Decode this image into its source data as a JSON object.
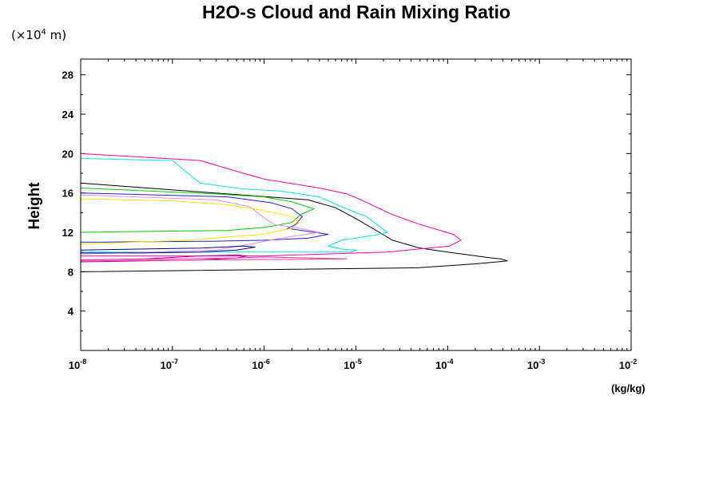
{
  "chart_data": {
    "type": "line",
    "title": "H2O-s Cloud and Rain Mixing Ratio",
    "y_unit_label": {
      "prefix": "(×10",
      "exponent": "4",
      "suffix": " m)"
    },
    "ylabel": "Height",
    "xlabel": "(kg/kg)",
    "xscale": "log",
    "xlim": [
      1e-08,
      0.01
    ],
    "ylim": [
      0,
      29.6
    ],
    "x_ticks": [
      {
        "value": 1e-08,
        "base": "10",
        "exp": "-8"
      },
      {
        "value": 1e-07,
        "base": "10",
        "exp": "-7"
      },
      {
        "value": 1e-06,
        "base": "10",
        "exp": "-6"
      },
      {
        "value": 1e-05,
        "base": "10",
        "exp": "-5"
      },
      {
        "value": 0.0001,
        "base": "10",
        "exp": "-4"
      },
      {
        "value": 0.001,
        "base": "10",
        "exp": "-3"
      },
      {
        "value": 0.01,
        "base": "10",
        "exp": "-2"
      }
    ],
    "y_ticks": [
      {
        "value": 4,
        "label": "4"
      },
      {
        "value": 8,
        "label": "8"
      },
      {
        "value": 12,
        "label": "12"
      },
      {
        "value": 16,
        "label": "16"
      },
      {
        "value": 20,
        "label": "20"
      },
      {
        "value": 24,
        "label": "24"
      },
      {
        "value": 28,
        "label": "28"
      }
    ],
    "grid": false,
    "legend": "none",
    "series": [
      {
        "color": "#000000",
        "x": [
          1e-08,
          4.8e-05,
          0.0002,
          0.00035,
          0.00045,
          0.00038,
          0.0003,
          0.0001,
          5e-05,
          2.5e-05,
          1.8e-05,
          1e-05,
          6e-06,
          3e-06,
          1e-08
        ],
        "y": [
          8.0,
          8.4,
          8.8,
          9.0,
          9.1,
          9.3,
          9.4,
          10.0,
          10.4,
          11.2,
          12.0,
          13.4,
          14.5,
          15.3,
          17.0
        ]
      },
      {
        "color": "#ff00aa",
        "x": [
          1e-08,
          1e-06,
          2.2e-05,
          0.000105,
          0.00014,
          0.000115,
          5e-05,
          2.5e-05,
          1.2e-05,
          8e-06,
          4e-06,
          1e-06,
          5e-07,
          2e-07,
          1e-08
        ],
        "y": [
          9.6,
          9.6,
          10.0,
          10.6,
          11.2,
          11.8,
          12.8,
          13.8,
          15.2,
          15.9,
          16.5,
          17.4,
          18.2,
          19.3,
          20.0
        ]
      },
      {
        "color": "#00e5e5",
        "x": [
          1e-08,
          1e-07,
          2e-07,
          6e-07,
          1.5e-06,
          4e-06,
          7e-06,
          1.3e-05,
          2.2e-05,
          1.6e-05,
          7e-06,
          5e-06,
          7e-06,
          1e-05,
          9e-06,
          1e-08
        ],
        "y": [
          19.5,
          19.3,
          17.0,
          16.4,
          16.2,
          15.6,
          14.6,
          13.6,
          12.0,
          11.7,
          11.2,
          10.6,
          10.3,
          10.2,
          10.0,
          10.0
        ]
      },
      {
        "color": "#00cc00",
        "x": [
          1e-08,
          3e-07,
          1e-06,
          2e-06,
          3.5e-06,
          2.5e-06,
          2e-06,
          1e-06,
          4e-07,
          1e-08
        ],
        "y": [
          16.5,
          15.9,
          15.6,
          15.1,
          14.4,
          13.8,
          13.0,
          12.5,
          12.2,
          12.0
        ]
      },
      {
        "color": "#2222cc",
        "x": [
          1e-08,
          4e-07,
          1.2e-06,
          2e-06,
          2.6e-06,
          2.2e-06,
          1.8e-06,
          5e-06,
          3e-06,
          1e-06,
          3e-07,
          1e-08
        ],
        "y": [
          16.0,
          15.6,
          15.0,
          14.4,
          13.6,
          12.8,
          12.4,
          11.8,
          11.4,
          11.2,
          11.1,
          11.0
        ]
      },
      {
        "color": "#ffe000",
        "x": [
          1e-08,
          1e-07,
          4e-07,
          1e-06,
          2e-06,
          2.4e-06,
          2e-06,
          1.2e-06,
          1e-06,
          5e-07,
          1.5e-07,
          1e-08
        ],
        "y": [
          15.4,
          15.2,
          14.8,
          14.2,
          13.6,
          13.0,
          12.4,
          12.0,
          11.8,
          11.6,
          11.2,
          10.8
        ]
      },
      {
        "color": "#ee88ee",
        "x": [
          1e-08,
          3e-07,
          7e-07,
          9e-07,
          1.1e-06,
          1.3e-06,
          2.5e-06,
          4e-06,
          1.5e-06,
          7e-07,
          3e-07,
          1e-08
        ],
        "y": [
          15.8,
          15.3,
          14.6,
          13.8,
          13.2,
          12.8,
          12.4,
          12.0,
          11.4,
          10.8,
          10.2,
          9.8
        ]
      },
      {
        "color": "#000088",
        "x": [
          1e-08,
          2e-07,
          6e-07,
          8e-07,
          5e-07,
          2e-07,
          5e-08,
          1e-08
        ],
        "y": [
          10.2,
          10.4,
          10.6,
          10.5,
          10.2,
          10.0,
          9.9,
          9.9
        ]
      },
      {
        "color": "#aa00aa",
        "x": [
          1e-08,
          5e-08,
          2e-07,
          5e-07,
          6.5e-07,
          5e-07,
          2e-07,
          1e-08
        ],
        "y": [
          9.2,
          9.3,
          9.6,
          9.7,
          9.6,
          9.4,
          9.2,
          9.0
        ]
      },
      {
        "color": "#ff3399",
        "x": [
          1e-08,
          1e-07,
          5e-07,
          1e-06,
          3e-06,
          8e-06,
          1e-08
        ],
        "y": [
          9.2,
          9.3,
          9.4,
          9.5,
          9.4,
          9.3,
          9.1
        ]
      }
    ]
  }
}
